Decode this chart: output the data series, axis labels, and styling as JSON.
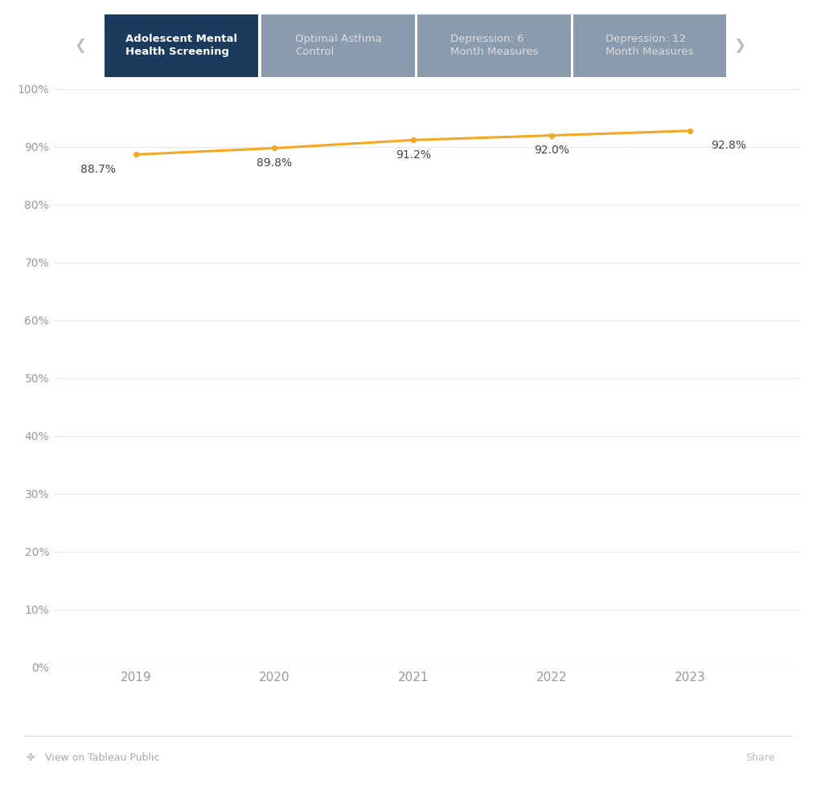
{
  "years": [
    2019,
    2020,
    2021,
    2022,
    2023
  ],
  "values": [
    88.7,
    89.8,
    91.2,
    92.0,
    92.8
  ],
  "line_color": "#F5A623",
  "marker_color": "#F5A623",
  "tab_selected_text": "Adolescent Mental\nHealth Screening",
  "tab_selected_bg": "#1B3A5C",
  "tab_selected_text_color": "#FFFFFF",
  "tabs_unselected": [
    "Optimal Asthma\nControl",
    "Depression: 6\nMonth Measures",
    "Depression: 12\nMonth Measures"
  ],
  "tab_unselected_bg": "#8A9BAE",
  "tab_unselected_text_color": "#DDDDDD",
  "background_color": "#FFFFFF",
  "grid_color": "#E8E8E8",
  "axis_label_color": "#999999",
  "data_label_color": "#444444",
  "ytick_labels": [
    "0%",
    "10%",
    "20%",
    "30%",
    "40%",
    "50%",
    "60%",
    "70%",
    "80%",
    "90%",
    "100%"
  ],
  "ytick_values": [
    0,
    10,
    20,
    30,
    40,
    50,
    60,
    70,
    80,
    90,
    100
  ],
  "ylim": [
    0,
    100
  ],
  "footer_text": "View on Tableau Public",
  "footer_text_color": "#AAAAAA",
  "nav_arrow_color": "#BBBBBB",
  "label_ha": [
    "right",
    "center",
    "center",
    "center",
    "left"
  ],
  "label_x_offset": [
    -0.15,
    0.0,
    0.0,
    0.0,
    0.15
  ],
  "label_y_offset": [
    -1.6,
    -1.6,
    -1.6,
    -1.6,
    -1.6
  ]
}
